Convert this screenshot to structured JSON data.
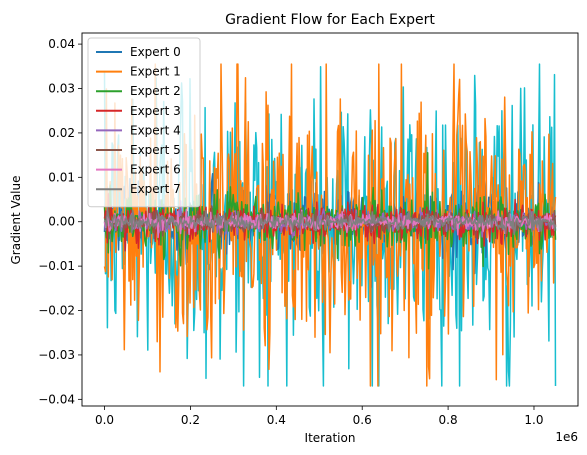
{
  "chart_data": {
    "type": "line",
    "title": "Gradient Flow for Each Expert",
    "xlabel": "Iteration",
    "ylabel": "Gradient Value",
    "x_offset_label": "1e6",
    "xlim": [
      -52500,
      1102500
    ],
    "ylim": [
      -0.0415,
      0.0425
    ],
    "x_range": [
      0,
      1050000
    ],
    "x_ticks": [
      {
        "value": 0,
        "label": "0.0"
      },
      {
        "value": 200000,
        "label": "0.2"
      },
      {
        "value": 400000,
        "label": "0.4"
      },
      {
        "value": 600000,
        "label": "0.6"
      },
      {
        "value": 800000,
        "label": "0.8"
      },
      {
        "value": 1000000,
        "label": "1.0"
      }
    ],
    "y_ticks": [
      {
        "value": 0.04,
        "label": "0.04"
      },
      {
        "value": 0.03,
        "label": "0.03"
      },
      {
        "value": 0.02,
        "label": "0.02"
      },
      {
        "value": 0.01,
        "label": "0.01"
      },
      {
        "value": 0.0,
        "label": "0.00"
      },
      {
        "value": -0.01,
        "label": "−0.01"
      },
      {
        "value": -0.02,
        "label": "−0.02"
      },
      {
        "value": -0.03,
        "label": "−0.03"
      },
      {
        "value": -0.04,
        "label": "−0.04"
      }
    ],
    "grid": false,
    "legend_position": "top-left",
    "series": [
      {
        "name": "Expert 0",
        "color": "#1f77b4",
        "amplitude": 0.004
      },
      {
        "name": "Expert 1",
        "color": "#ff7f0e",
        "amplitude": 0.0155
      },
      {
        "name": "Expert 2",
        "color": "#2ca02c",
        "amplitude": 0.0035
      },
      {
        "name": "Expert 3",
        "color": "#d62728",
        "amplitude": 0.0022
      },
      {
        "name": "Expert 4",
        "color": "#9467bd",
        "amplitude": 0.0012
      },
      {
        "name": "Expert 5",
        "color": "#8c564b",
        "amplitude": 0.0012
      },
      {
        "name": "Expert 6",
        "color": "#e377c2",
        "amplitude": 0.001
      },
      {
        "name": "Expert 7",
        "color": "#7f7f7f",
        "amplitude": 0.001
      },
      {
        "name": "",
        "color": "#17becf",
        "amplitude": 0.0175
      }
    ],
    "draw_order": [
      8,
      0,
      1,
      2,
      3,
      4,
      5,
      6,
      7
    ]
  }
}
